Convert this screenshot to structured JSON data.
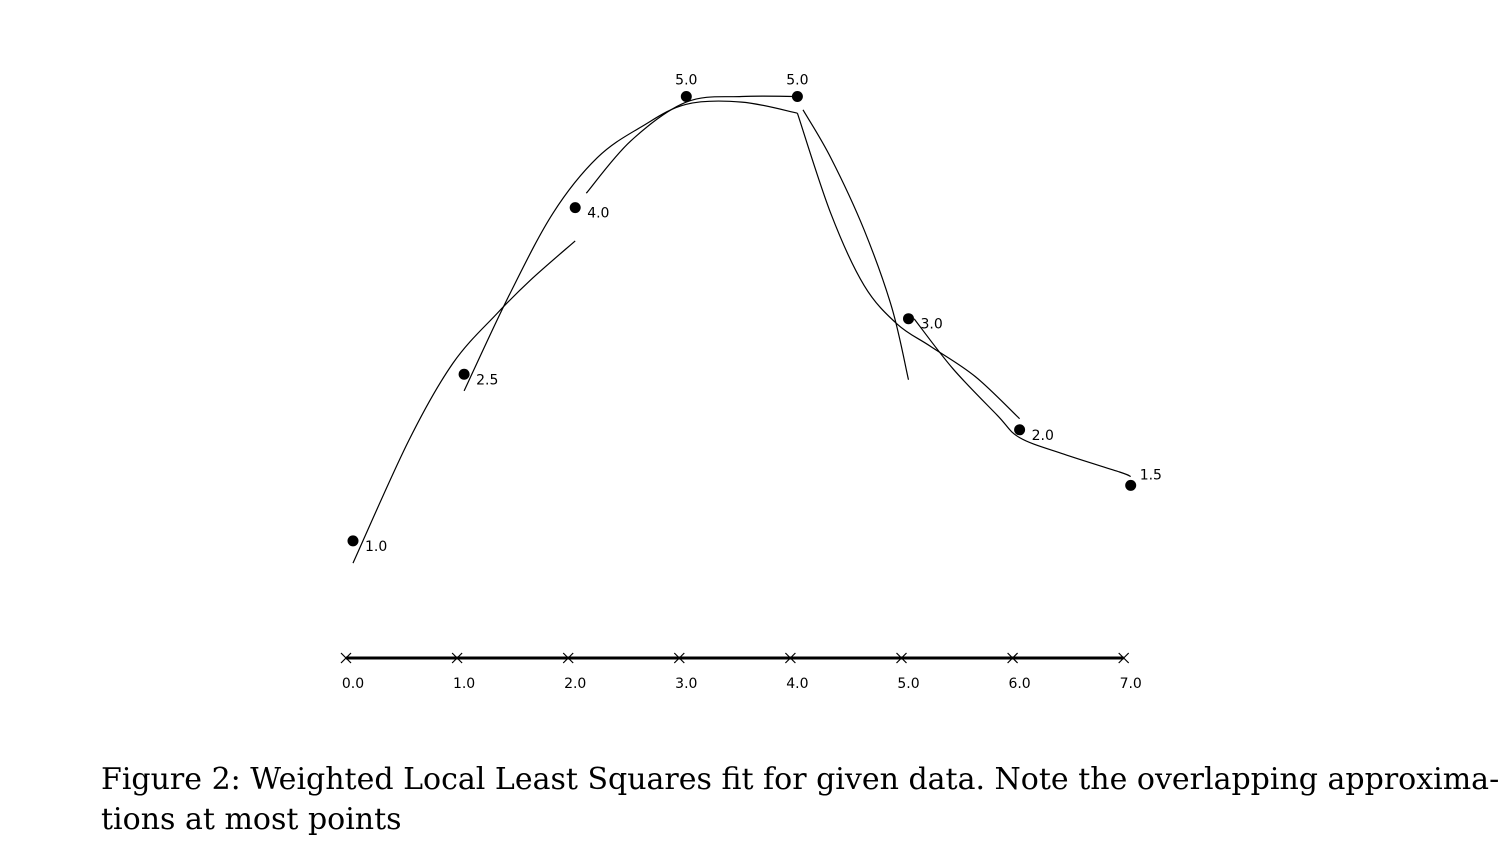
{
  "chart_data": {
    "type": "scatter",
    "points": [
      {
        "x": 0.0,
        "y": 1.0,
        "label": "1.0"
      },
      {
        "x": 1.0,
        "y": 2.5,
        "label": "2.5"
      },
      {
        "x": 2.0,
        "y": 4.0,
        "label": "4.0"
      },
      {
        "x": 3.0,
        "y": 5.0,
        "label": "5.0"
      },
      {
        "x": 4.0,
        "y": 5.0,
        "label": "5.0"
      },
      {
        "x": 5.0,
        "y": 3.0,
        "label": "3.0"
      },
      {
        "x": 6.0,
        "y": 2.0,
        "label": "2.0"
      },
      {
        "x": 7.0,
        "y": 1.5,
        "label": "1.5"
      }
    ],
    "x_ticks": [
      {
        "value": 0.0,
        "label": "0.0"
      },
      {
        "value": 1.0,
        "label": "1.0"
      },
      {
        "value": 2.0,
        "label": "2.0"
      },
      {
        "value": 3.0,
        "label": "3.0"
      },
      {
        "value": 4.0,
        "label": "4.0"
      },
      {
        "value": 5.0,
        "label": "5.0"
      },
      {
        "value": 6.0,
        "label": "6.0"
      },
      {
        "value": 7.0,
        "label": "7.0"
      }
    ],
    "xlim": [
      0,
      7
    ],
    "grid": false,
    "local_fits": [
      {
        "x": [
          0.0,
          0.5,
          0.9,
          1.3,
          1.6,
          2.0
        ],
        "y": [
          0.8,
          1.9,
          2.6,
          3.05,
          3.35,
          3.7
        ]
      },
      {
        "x": [
          1.0,
          1.4,
          1.8,
          2.2,
          2.6,
          3.0,
          3.5,
          4.0
        ],
        "y": [
          2.35,
          3.2,
          3.95,
          4.45,
          4.73,
          4.93,
          4.95,
          4.85
        ]
      },
      {
        "x": [
          2.1,
          2.5,
          3.0,
          3.5,
          4.0
        ],
        "y": [
          4.13,
          4.6,
          4.95,
          5.0,
          5.0
        ]
      },
      {
        "x": [
          4.0,
          4.3,
          4.6,
          4.9,
          5.2,
          5.6,
          6.0
        ],
        "y": [
          4.85,
          3.95,
          3.3,
          2.95,
          2.75,
          2.48,
          2.1
        ]
      },
      {
        "x": [
          4.05,
          4.3,
          4.6,
          4.85,
          5.0
        ],
        "y": [
          4.88,
          4.45,
          3.8,
          3.1,
          2.45
        ]
      },
      {
        "x": [
          5.05,
          5.4,
          5.8,
          6.0,
          6.4,
          6.9,
          7.0
        ],
        "y": [
          3.0,
          2.55,
          2.13,
          1.93,
          1.78,
          1.62,
          1.58
        ]
      }
    ]
  },
  "caption": {
    "line1": "Figure 2: Weighted Local Least Squares fit for given data. Note the overlapping approxima-",
    "line2": "tions at most points"
  }
}
